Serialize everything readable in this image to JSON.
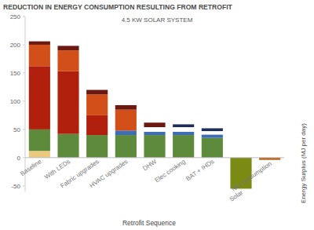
{
  "chart_data": {
    "type": "bar",
    "stacked": true,
    "title": "REDUCTION IN ENERGY CONSUMPTION RESULTING FROM RETROFIT",
    "subtitle": "4.5 KW SOLAR SYSTEM",
    "x_label": "Retrofit Sequence",
    "y_label": "Energy Surplus (MJ per day)",
    "categories": [
      "Baseline",
      "With LEDs",
      "Fabric upgrades",
      "HVAC upgrades",
      "DHW",
      "Elec cooking",
      "BAT + IHDs",
      "Solar",
      "Net consumption"
    ],
    "ylim": [
      -60,
      250
    ],
    "yticks": [
      -50,
      0,
      50,
      100,
      150,
      200,
      250
    ],
    "grid": false,
    "series": [
      {
        "color": "#e9c97e",
        "values": [
          12,
          null,
          null,
          null,
          null,
          null,
          null,
          null,
          null
        ]
      },
      {
        "color": "#5d8a3b",
        "values": [
          38,
          42,
          40,
          40,
          40,
          40,
          35,
          null,
          null
        ]
      },
      {
        "color": "#3e6db4",
        "values": [
          null,
          null,
          null,
          8,
          6,
          6,
          6,
          null,
          null
        ]
      },
      {
        "color": "#ffffff",
        "values": [
          null,
          null,
          null,
          null,
          8,
          8,
          6,
          null,
          null
        ]
      },
      {
        "color": "#b0200d",
        "values": [
          112,
          111,
          35,
          null,
          null,
          null,
          null,
          null,
          null
        ]
      },
      {
        "color": "#d24f1a",
        "values": [
          38,
          37,
          37,
          37,
          null,
          null,
          null,
          null,
          null
        ]
      },
      {
        "color": "#6b1a13",
        "values": [
          6,
          8,
          8,
          8,
          8,
          null,
          null,
          null,
          null
        ]
      },
      {
        "color": "#1f2d5c",
        "values": [
          null,
          null,
          null,
          null,
          null,
          5,
          5,
          null,
          null
        ]
      },
      {
        "color": "#7a8a12",
        "values": [
          null,
          null,
          null,
          null,
          null,
          null,
          null,
          -55,
          null
        ]
      },
      {
        "color": "#b8651f",
        "values": [
          null,
          null,
          null,
          null,
          null,
          null,
          null,
          null,
          -4
        ]
      }
    ]
  }
}
